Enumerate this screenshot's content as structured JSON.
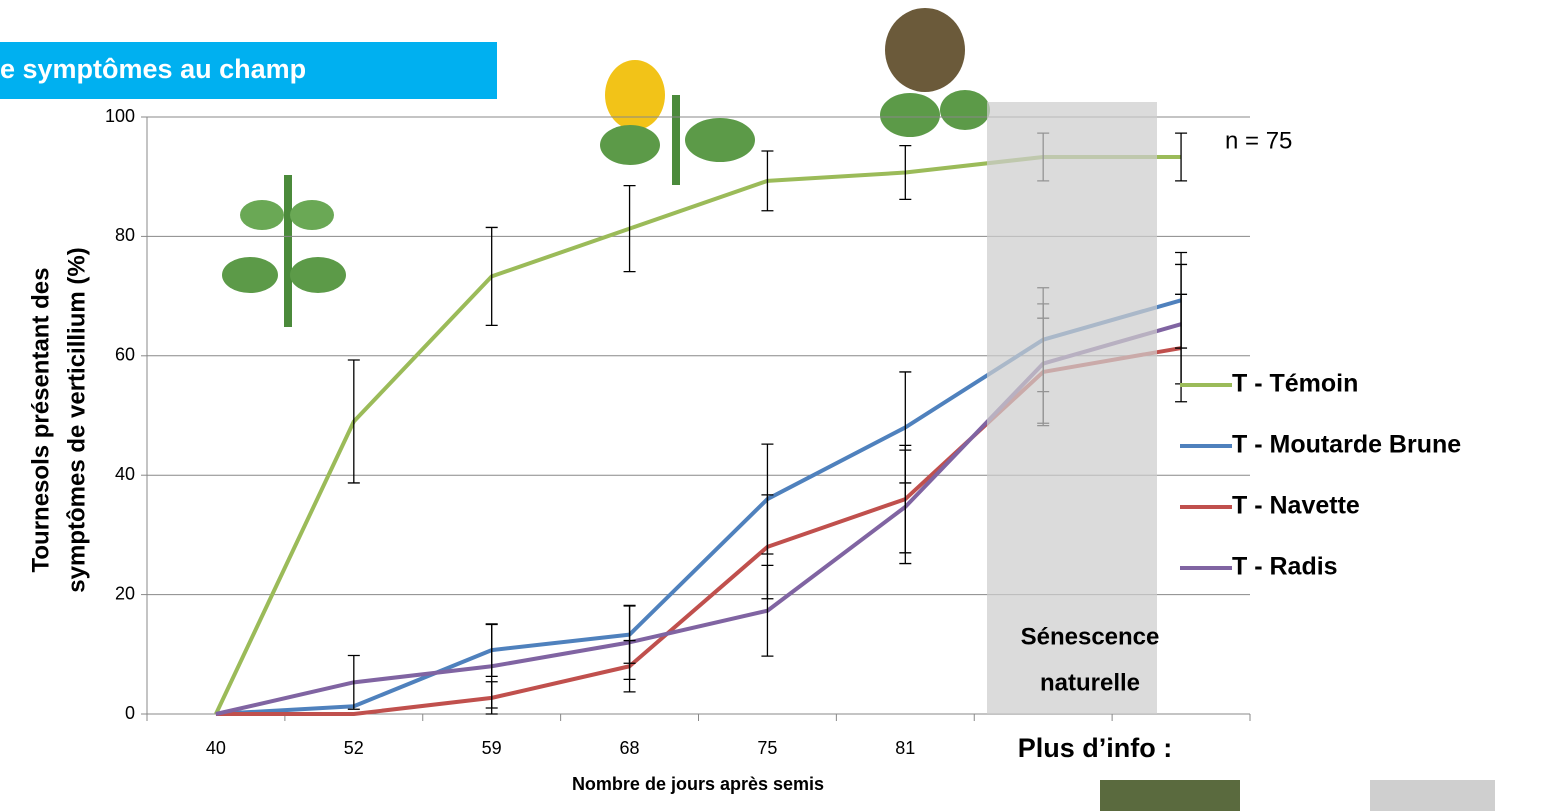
{
  "chart_data": {
    "type": "line",
    "banner": "e symptômes au champ",
    "ylabel": [
      "Tournesols présentant des",
      "symptômes de verticillium (%)"
    ],
    "xlabel": "Nombre de jours après semis",
    "annotations": {
      "n": "n = 75",
      "shade": [
        "Sénescence",
        "naturelle"
      ],
      "info": "Plus d’info :"
    },
    "categories": [
      40,
      52,
      59,
      68,
      75,
      81,
      null,
      null
    ],
    "ylim": [
      0,
      100
    ],
    "yticks": [
      0,
      20,
      40,
      60,
      80,
      100
    ],
    "grid": true,
    "legend": "right",
    "series": [
      {
        "name": "T - Témoin",
        "color": "#9bbb59",
        "values": [
          0,
          49,
          73.3,
          81.3,
          89.3,
          90.7,
          93.3,
          93.3
        ],
        "errors": [
          null,
          10.3,
          8.2,
          7.2,
          5,
          4.5,
          4,
          4
        ]
      },
      {
        "name": "T - Moutarde Brune",
        "color": "#4f81bd",
        "values": [
          0,
          1.3,
          10.7,
          13.3,
          36,
          48,
          62.7,
          69.3
        ],
        "errors": [
          null,
          null,
          4.4,
          4.8,
          9.2,
          9.3,
          8.7,
          8
        ]
      },
      {
        "name": "T - Navette",
        "color": "#c0504d",
        "values": [
          0,
          0,
          2.7,
          8,
          28,
          36,
          57.3,
          61.3
        ],
        "errors": [
          null,
          null,
          2.7,
          4.3,
          8.7,
          9,
          9,
          9
        ]
      },
      {
        "name": "T - Radis",
        "color": "#8064a2",
        "values": [
          0,
          5.3,
          8,
          12,
          17.3,
          34.7,
          58.7,
          65.3
        ],
        "errors": [
          null,
          4.5,
          7,
          6.2,
          7.6,
          9.5,
          10,
          10
        ]
      }
    ]
  }
}
